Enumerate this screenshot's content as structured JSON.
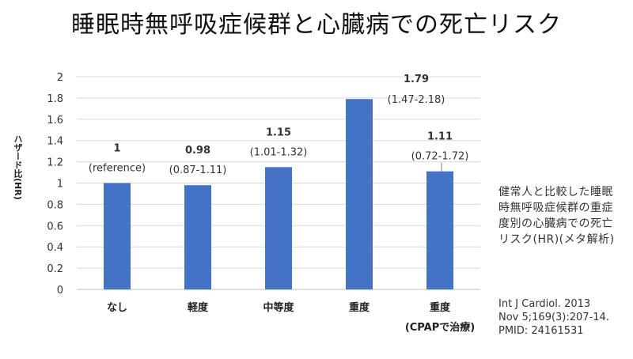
{
  "page": {
    "title": "睡眠時無呼吸症候群と心臓病での死亡リスク",
    "note": "健常人と比較した睡眠時無呼吸症候群の重症度別の心臓病での死亡リスク(HR)(メタ解析)",
    "citation": [
      "Int J Cardiol. 2013",
      "Nov 5;169(3):207-14.",
      "PMID: 24161531"
    ]
  },
  "colors": {
    "bar": "#4472C4",
    "grid": "#D9D9D9",
    "axis": "#BFBFBF",
    "text": "#333333"
  },
  "chart_data": {
    "type": "bar",
    "title": "",
    "xlabel": "",
    "ylabel": "ハザード比(HR)",
    "ylim": [
      0,
      2
    ],
    "yticks": [
      "0",
      "0.2",
      "0.4",
      "0.6",
      "0.8",
      "1",
      "1.2",
      "1.4",
      "1.6",
      "1.8",
      "2"
    ],
    "grid": true,
    "categories": [
      {
        "label": "なし"
      },
      {
        "label": "軽度"
      },
      {
        "label": "中等度"
      },
      {
        "label": "重度"
      },
      {
        "label": "重度",
        "sublabel": "(CPAPで治療)"
      }
    ],
    "values": [
      1,
      0.98,
      1.15,
      1.79,
      1.11
    ],
    "value_labels": [
      "1",
      "0.98",
      "1.15",
      "1.79",
      "1.11"
    ],
    "ci_labels": [
      "(reference)",
      "(0.87-1.11)",
      "(1.01-1.32)",
      "(1.47-2.18)",
      "(0.72-1.72)"
    ]
  }
}
